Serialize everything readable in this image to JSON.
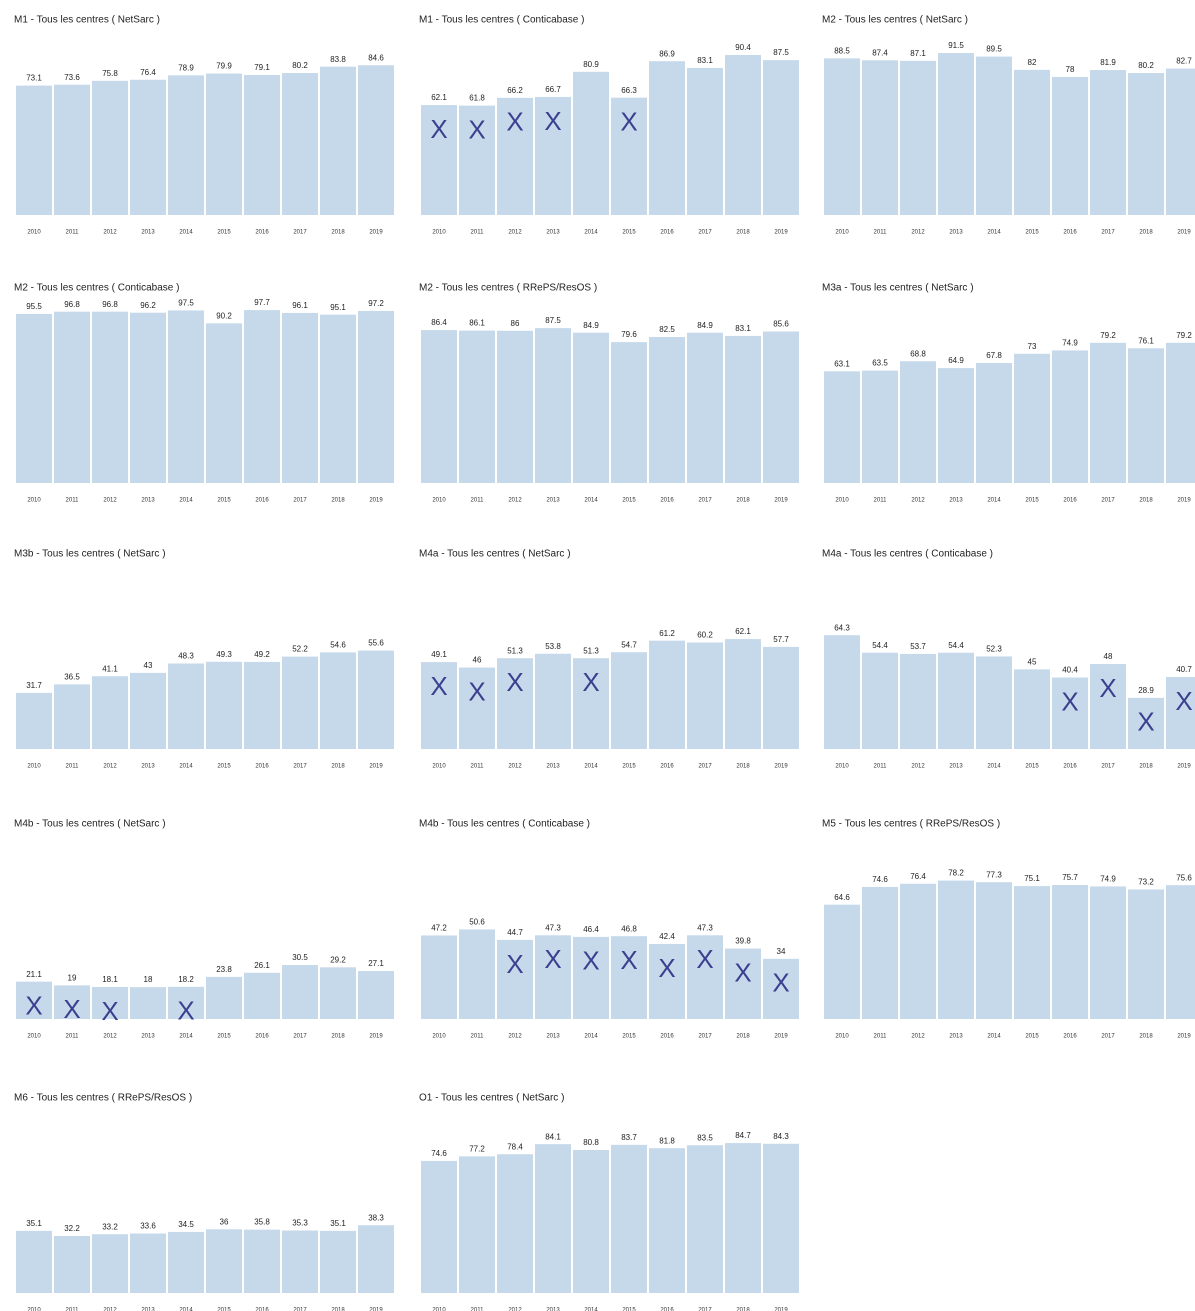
{
  "chart_data": [
    {
      "type": "bar",
      "title": "M1 - Tous les centres ( NetSarc )",
      "categories": [
        "2010",
        "2011",
        "2012",
        "2013",
        "2014",
        "2015",
        "2016",
        "2017",
        "2018",
        "2019"
      ],
      "values": [
        73.1,
        73.6,
        75.8,
        76.4,
        78.9,
        79.9,
        79.1,
        80.2,
        83.8,
        84.6
      ],
      "annotations": [
        null,
        null,
        null,
        null,
        null,
        null,
        null,
        null,
        null,
        null
      ],
      "color": "#c5d9ea",
      "ylim": [
        0,
        100
      ]
    },
    {
      "type": "bar",
      "title": "M1 - Tous les centres ( Conticabase )",
      "categories": [
        "2010",
        "2011",
        "2012",
        "2013",
        "2014",
        "2015",
        "2016",
        "2017",
        "2018",
        "2019"
      ],
      "values": [
        62.1,
        61.8,
        66.2,
        66.7,
        80.9,
        66.3,
        86.9,
        83.1,
        90.4,
        87.5
      ],
      "annotations": [
        "X",
        "X",
        "X",
        "X",
        null,
        "X",
        null,
        null,
        null,
        null
      ],
      "color": "#c5d9ea",
      "ylim": [
        0,
        100
      ]
    },
    {
      "type": "bar",
      "title": "M2 - Tous les centres ( NetSarc )",
      "categories": [
        "2010",
        "2011",
        "2012",
        "2013",
        "2014",
        "2015",
        "2016",
        "2017",
        "2018",
        "2019"
      ],
      "values": [
        88.5,
        87.4,
        87.1,
        91.5,
        89.5,
        82,
        78,
        81.9,
        80.2,
        82.7
      ],
      "annotations": [
        null,
        null,
        null,
        null,
        null,
        null,
        null,
        null,
        null,
        null
      ],
      "color": "#c5d9ea",
      "ylim": [
        0,
        100
      ]
    },
    {
      "type": "bar",
      "title": "M2 - Tous les centres ( Conticabase )",
      "categories": [
        "2010",
        "2011",
        "2012",
        "2013",
        "2014",
        "2015",
        "2016",
        "2017",
        "2018",
        "2019"
      ],
      "values": [
        95.5,
        96.8,
        96.8,
        96.2,
        97.5,
        90.2,
        97.7,
        96.1,
        95.1,
        97.2
      ],
      "annotations": [
        null,
        null,
        null,
        null,
        null,
        null,
        null,
        null,
        null,
        null
      ],
      "color": "#c5d9ea",
      "ylim": [
        0,
        100
      ]
    },
    {
      "type": "bar",
      "title": "M2 - Tous les centres ( RRePS/ResOS )",
      "categories": [
        "2010",
        "2011",
        "2012",
        "2013",
        "2014",
        "2015",
        "2016",
        "2017",
        "2018",
        "2019"
      ],
      "values": [
        86.4,
        86.1,
        86,
        87.5,
        84.9,
        79.6,
        82.5,
        84.9,
        83.1,
        85.6
      ],
      "annotations": [
        null,
        null,
        null,
        null,
        null,
        null,
        null,
        null,
        null,
        null
      ],
      "color": "#c5d9ea",
      "ylim": [
        0,
        100
      ]
    },
    {
      "type": "bar",
      "title": "M3a - Tous les centres ( NetSarc )",
      "categories": [
        "2010",
        "2011",
        "2012",
        "2013",
        "2014",
        "2015",
        "2016",
        "2017",
        "2018",
        "2019"
      ],
      "values": [
        63.1,
        63.5,
        68.8,
        64.9,
        67.8,
        73,
        74.9,
        79.2,
        76.1,
        79.2
      ],
      "annotations": [
        null,
        null,
        null,
        null,
        null,
        null,
        null,
        null,
        null,
        null
      ],
      "color": "#c5d9ea",
      "ylim": [
        0,
        100
      ]
    },
    {
      "type": "bar",
      "title": "M3b - Tous les centres ( NetSarc )",
      "categories": [
        "2010",
        "2011",
        "2012",
        "2013",
        "2014",
        "2015",
        "2016",
        "2017",
        "2018",
        "2019"
      ],
      "values": [
        31.7,
        36.5,
        41.1,
        43,
        48.3,
        49.3,
        49.2,
        52.2,
        54.6,
        55.6
      ],
      "annotations": [
        null,
        null,
        null,
        null,
        null,
        null,
        null,
        null,
        null,
        null
      ],
      "color": "#c5d9ea",
      "ylim": [
        0,
        100
      ]
    },
    {
      "type": "bar",
      "title": "M4a - Tous les centres ( NetSarc )",
      "categories": [
        "2010",
        "2011",
        "2012",
        "2013",
        "2014",
        "2015",
        "2016",
        "2017",
        "2018",
        "2019"
      ],
      "values": [
        49.1,
        46,
        51.3,
        53.8,
        51.3,
        54.7,
        61.2,
        60.2,
        62.1,
        57.7
      ],
      "annotations": [
        "X",
        "X",
        "X",
        null,
        "X",
        null,
        null,
        null,
        null,
        null
      ],
      "color": "#c5d9ea",
      "ylim": [
        0,
        100
      ]
    },
    {
      "type": "bar",
      "title": "M4a - Tous les centres ( Conticabase )",
      "categories": [
        "2010",
        "2011",
        "2012",
        "2013",
        "2014",
        "2015",
        "2016",
        "2017",
        "2018",
        "2019"
      ],
      "values": [
        64.3,
        54.4,
        53.7,
        54.4,
        52.3,
        45,
        40.4,
        48,
        28.9,
        40.7
      ],
      "annotations": [
        null,
        null,
        null,
        null,
        null,
        null,
        "X",
        "X",
        "X",
        "X"
      ],
      "color": "#c5d9ea",
      "ylim": [
        0,
        100
      ]
    },
    {
      "type": "bar",
      "title": "M4b - Tous les centres ( NetSarc )",
      "categories": [
        "2010",
        "2011",
        "2012",
        "2013",
        "2014",
        "2015",
        "2016",
        "2017",
        "2018",
        "2019"
      ],
      "values": [
        21.1,
        19,
        18.1,
        18,
        18.2,
        23.8,
        26.1,
        30.5,
        29.2,
        27.1
      ],
      "annotations": [
        "X",
        "X",
        "X",
        null,
        "X",
        null,
        null,
        null,
        null,
        null
      ],
      "color": "#c5d9ea",
      "ylim": [
        0,
        100
      ]
    },
    {
      "type": "bar",
      "title": "M4b - Tous les centres ( Conticabase )",
      "categories": [
        "2010",
        "2011",
        "2012",
        "2013",
        "2014",
        "2015",
        "2016",
        "2017",
        "2018",
        "2019"
      ],
      "values": [
        47.2,
        50.6,
        44.7,
        47.3,
        46.4,
        46.8,
        42.4,
        47.3,
        39.8,
        34
      ],
      "annotations": [
        null,
        null,
        "X",
        "X",
        "X",
        "X",
        "X",
        "X",
        "X",
        "X"
      ],
      "color": "#c5d9ea",
      "ylim": [
        0,
        100
      ]
    },
    {
      "type": "bar",
      "title": "M5 - Tous les centres ( RRePS/ResOS )",
      "categories": [
        "2010",
        "2011",
        "2012",
        "2013",
        "2014",
        "2015",
        "2016",
        "2017",
        "2018",
        "2019"
      ],
      "values": [
        64.6,
        74.6,
        76.4,
        78.2,
        77.3,
        75.1,
        75.7,
        74.9,
        73.2,
        75.6
      ],
      "annotations": [
        null,
        null,
        null,
        null,
        null,
        null,
        null,
        null,
        null,
        null
      ],
      "color": "#c5d9ea",
      "ylim": [
        0,
        100
      ]
    },
    {
      "type": "bar",
      "title": "M6 - Tous les centres ( RRePS/ResOS )",
      "categories": [
        "2010",
        "2011",
        "2012",
        "2013",
        "2014",
        "2015",
        "2016",
        "2017",
        "2018",
        "2019"
      ],
      "values": [
        35.1,
        32.2,
        33.2,
        33.6,
        34.5,
        36,
        35.8,
        35.3,
        35.1,
        38.3
      ],
      "annotations": [
        null,
        null,
        null,
        null,
        null,
        null,
        null,
        null,
        null,
        null
      ],
      "color": "#c5d9ea",
      "ylim": [
        0,
        100
      ]
    },
    {
      "type": "bar",
      "title": "O1 - Tous les centres ( NetSarc )",
      "categories": [
        "2010",
        "2011",
        "2012",
        "2013",
        "2014",
        "2015",
        "2016",
        "2017",
        "2018",
        "2019"
      ],
      "values": [
        74.6,
        77.2,
        78.4,
        84.1,
        80.8,
        83.7,
        81.8,
        83.5,
        84.7,
        84.3
      ],
      "annotations": [
        null,
        null,
        null,
        null,
        null,
        null,
        null,
        null,
        null,
        null
      ],
      "color": "#c5d9ea",
      "ylim": [
        0,
        100
      ]
    }
  ]
}
